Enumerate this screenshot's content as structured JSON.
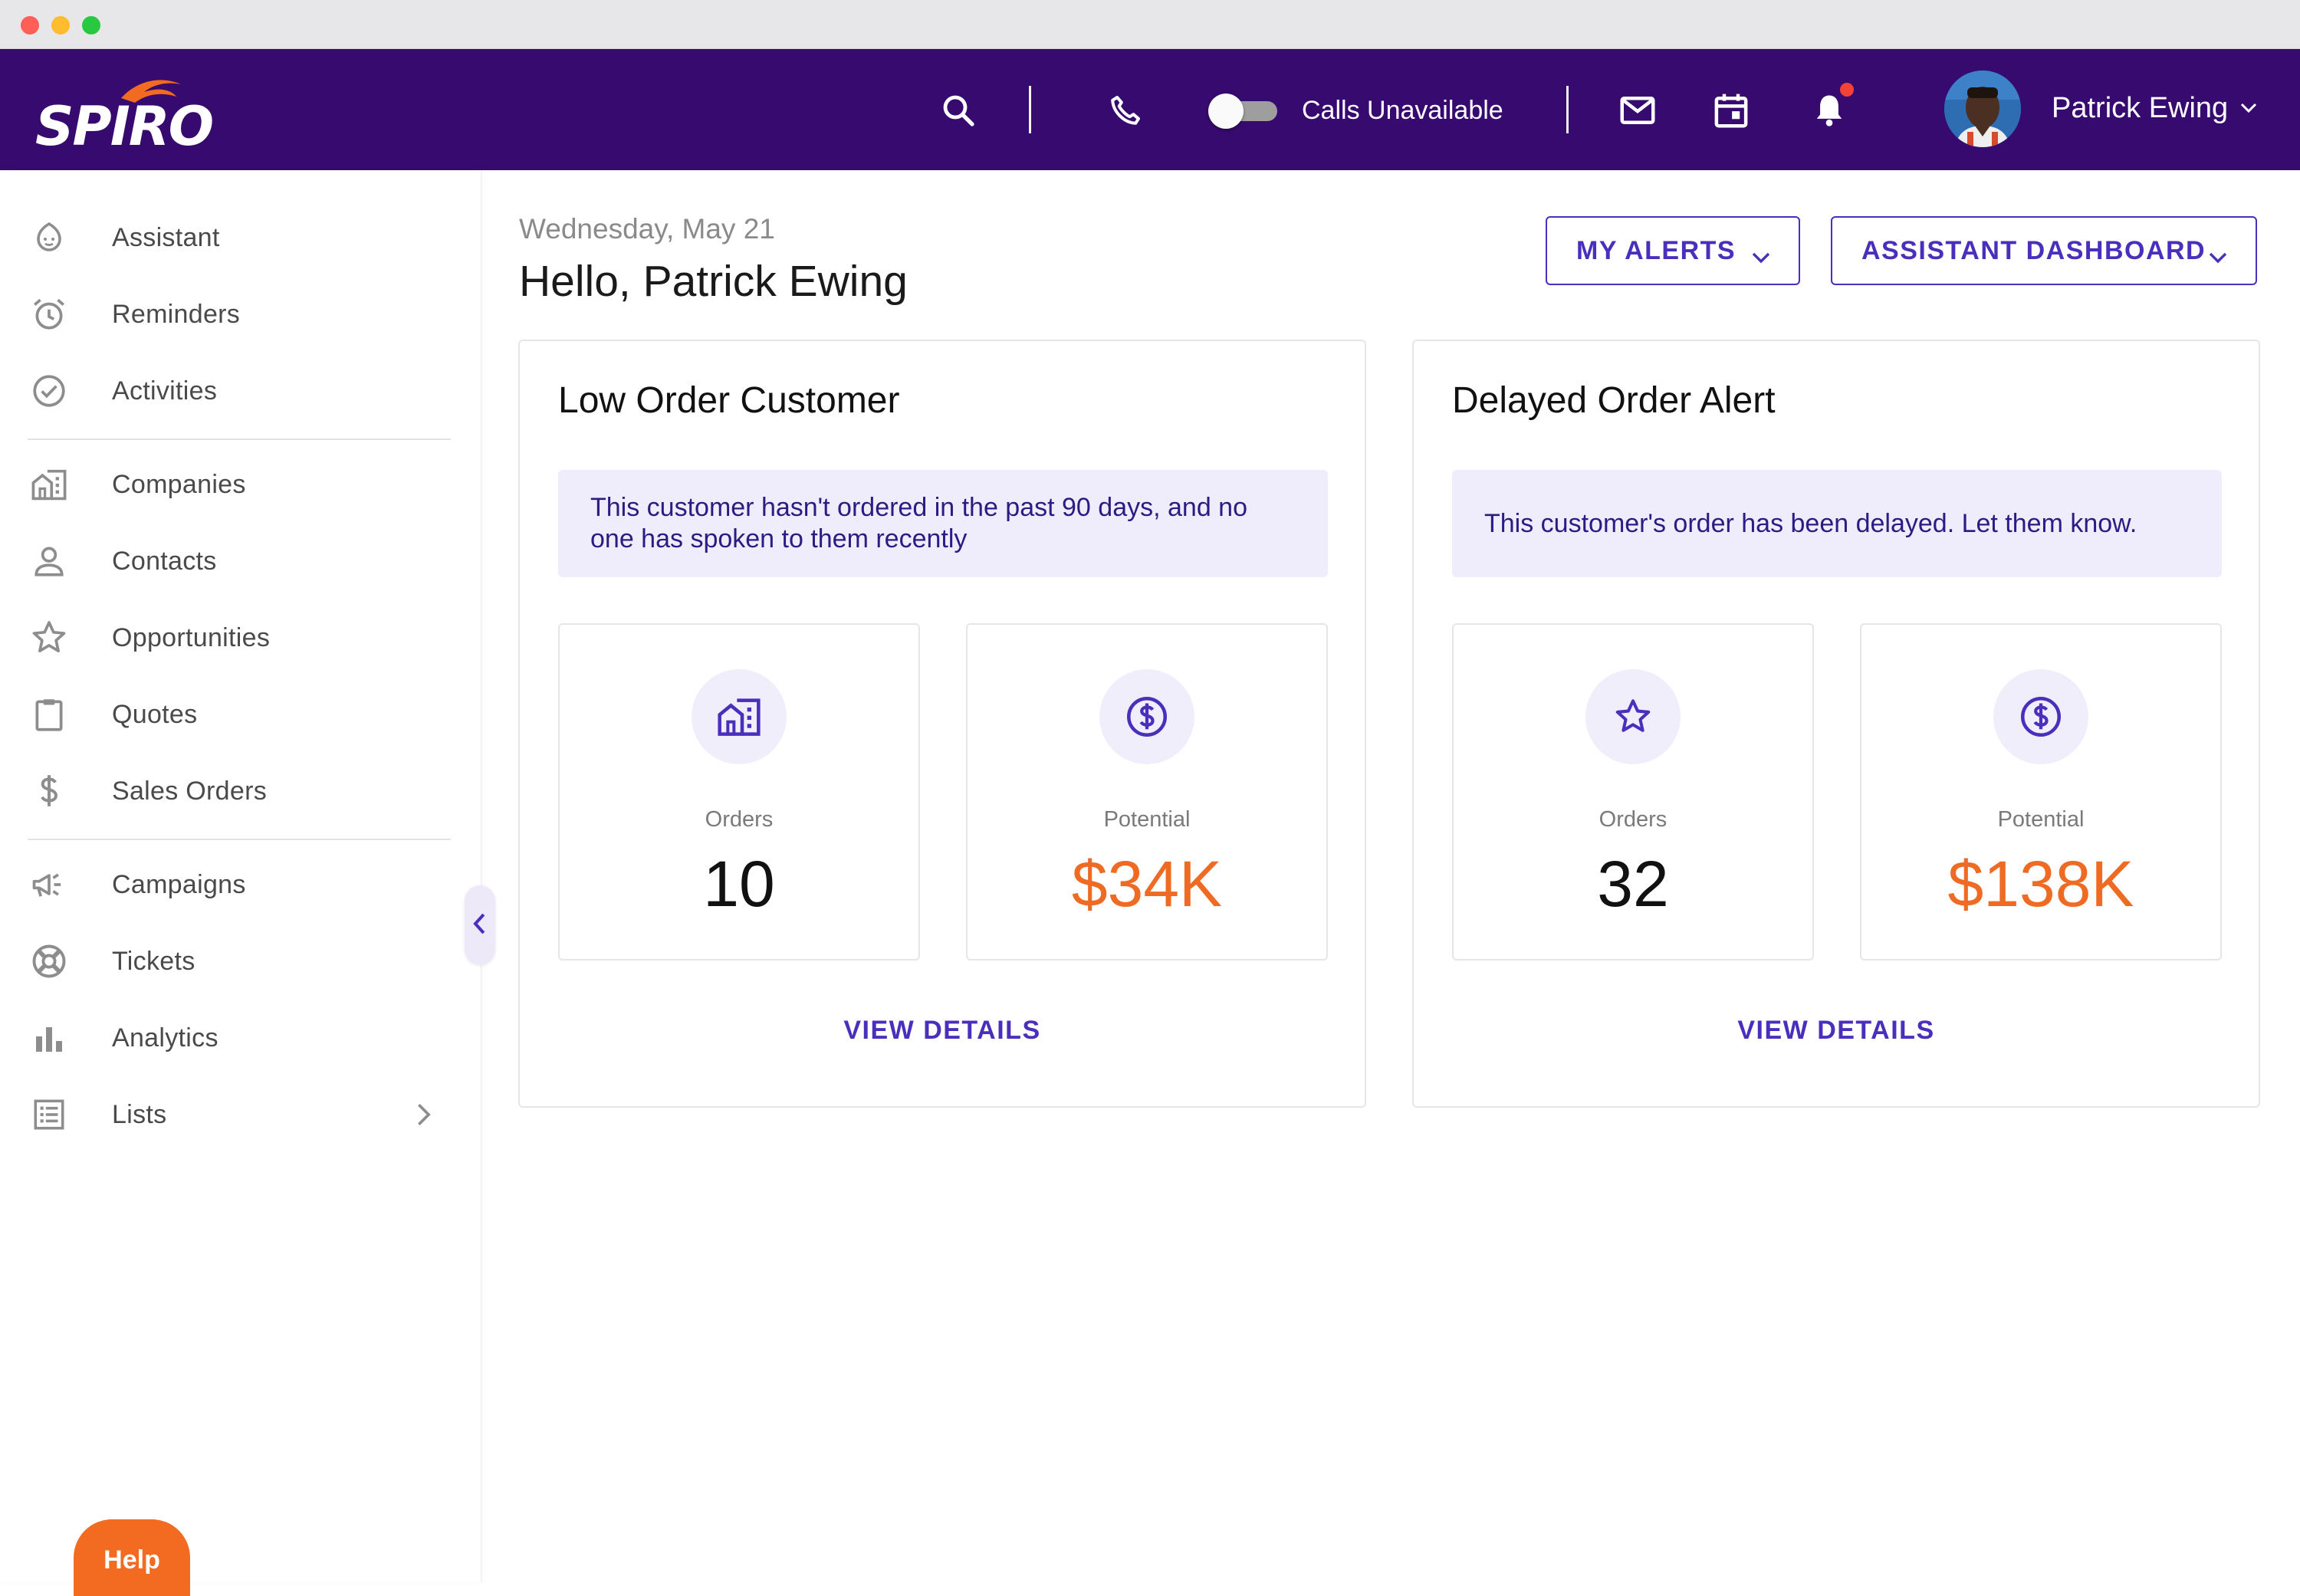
{
  "app": {
    "brand": "SPIRO",
    "colors": {
      "header_bg": "#370a6f",
      "accent": "#4a2fbd",
      "money": "#ef6a23",
      "help": "#f26b21",
      "notification": "#f44336"
    }
  },
  "topbar": {
    "icons": [
      "search-icon",
      "phone-icon",
      "mail-icon",
      "calendar-icon",
      "bell-icon"
    ],
    "calls_toggle": {
      "label": "Calls Unavailable",
      "on": false
    },
    "notification_badge": true,
    "user": {
      "name": "Patrick Ewing"
    }
  },
  "sidebar": {
    "groups": [
      [
        {
          "label": "Assistant",
          "icon": "assistant-icon"
        },
        {
          "label": "Reminders",
          "icon": "alarm-clock-icon"
        },
        {
          "label": "Activities",
          "icon": "check-circle-icon"
        }
      ],
      [
        {
          "label": "Companies",
          "icon": "building-icon"
        },
        {
          "label": "Contacts",
          "icon": "person-icon"
        },
        {
          "label": "Opportunities",
          "icon": "star-icon"
        },
        {
          "label": "Quotes",
          "icon": "clipboard-icon"
        },
        {
          "label": "Sales Orders",
          "icon": "dollar-icon"
        }
      ],
      [
        {
          "label": "Campaigns",
          "icon": "megaphone-icon"
        },
        {
          "label": "Tickets",
          "icon": "lifebuoy-icon"
        },
        {
          "label": "Analytics",
          "icon": "bar-chart-icon"
        },
        {
          "label": "Lists",
          "icon": "list-icon"
        }
      ]
    ],
    "help_label": "Help"
  },
  "main": {
    "date": "Wednesday, May 21",
    "greeting": "Hello, Patrick Ewing",
    "buttons": {
      "alerts": "MY ALERTS",
      "dashboard": "ASSISTANT DASHBOARD"
    },
    "cards": [
      {
        "title": "Low Order Customer",
        "message": "This customer hasn't ordered in the past 90 days, and no one has spoken to them recently",
        "stats": [
          {
            "label": "Orders",
            "value": "10",
            "icon": "building-icon"
          },
          {
            "label": "Potential",
            "value": "$34K",
            "icon": "dollar-circle-icon"
          }
        ],
        "link": "VIEW DETAILS"
      },
      {
        "title": "Delayed Order Alert",
        "message": "This customer's order has been delayed. Let them know.",
        "stats": [
          {
            "label": "Orders",
            "value": "32",
            "icon": "star-icon"
          },
          {
            "label": "Potential",
            "value": "$138K",
            "icon": "dollar-circle-icon"
          }
        ],
        "link": "VIEW DETAILS"
      }
    ]
  }
}
